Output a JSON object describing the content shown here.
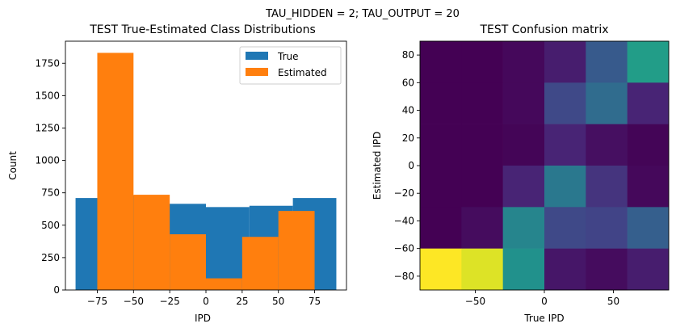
{
  "suptitle": "TAU_HIDDEN = 2; TAU_OUTPUT = 20",
  "chart_data": [
    {
      "type": "bar",
      "title": "TEST True-Estimated Class Distributions",
      "xlabel": "IPD",
      "ylabel": "Count",
      "xlim": [
        -97,
        97
      ],
      "ylim": [
        0,
        1920
      ],
      "xticks": [
        -75,
        -50,
        -25,
        0,
        25,
        50,
        75
      ],
      "xtick_labels": [
        "−75",
        "−50",
        "−25",
        "0",
        "25",
        "50",
        "75"
      ],
      "yticks": [
        0,
        250,
        500,
        750,
        1000,
        1250,
        1500,
        1750
      ],
      "legend_position": "upper right",
      "series": [
        {
          "name": "True",
          "color": "#1f77b4",
          "bins": [
            [
              -90,
              -60
            ],
            [
              -60,
              -30
            ],
            [
              -30,
              0
            ],
            [
              0,
              30
            ],
            [
              30,
              60
            ],
            [
              60,
              90
            ]
          ],
          "values": [
            710,
            730,
            665,
            640,
            650,
            710
          ]
        },
        {
          "name": "Estimated",
          "color": "#ff7f0e",
          "bins": [
            [
              -75,
              -50
            ],
            [
              -50,
              -25
            ],
            [
              -25,
              0
            ],
            [
              0,
              25
            ],
            [
              25,
              50
            ],
            [
              50,
              75
            ]
          ],
          "values": [
            1830,
            735,
            430,
            90,
            410,
            610
          ]
        }
      ]
    },
    {
      "type": "heatmap",
      "title": "TEST Confusion matrix",
      "xlabel": "True IPD",
      "ylabel": "Estimated IPD",
      "xlim": [
        -90,
        90
      ],
      "ylim": [
        -90,
        90
      ],
      "xticks": [
        -50,
        0,
        50
      ],
      "xtick_labels": [
        "−50",
        "0",
        "50"
      ],
      "yticks": [
        -80,
        -60,
        -40,
        -20,
        0,
        20,
        40,
        60,
        80
      ],
      "ytick_labels": [
        "−80",
        "−60",
        "−40",
        "−20",
        "0",
        "20",
        "40",
        "60",
        "80"
      ],
      "colormap": "viridis",
      "x_edges": [
        -90,
        -60,
        -30,
        0,
        30,
        60,
        90
      ],
      "y_edges": [
        -90,
        -60,
        -30,
        0,
        30,
        60,
        90
      ],
      "rows_top_to_bottom": [
        [
          0.0,
          0.0,
          0.02,
          0.08,
          0.28,
          0.55
        ],
        [
          0.0,
          0.0,
          0.02,
          0.22,
          0.35,
          0.1
        ],
        [
          0.0,
          0.0,
          0.01,
          0.1,
          0.04,
          0.01
        ],
        [
          0.0,
          0.0,
          0.1,
          0.4,
          0.15,
          0.02
        ],
        [
          0.0,
          0.03,
          0.45,
          0.22,
          0.2,
          0.3
        ],
        [
          1.0,
          0.95,
          0.5,
          0.06,
          0.03,
          0.08
        ]
      ]
    }
  ]
}
